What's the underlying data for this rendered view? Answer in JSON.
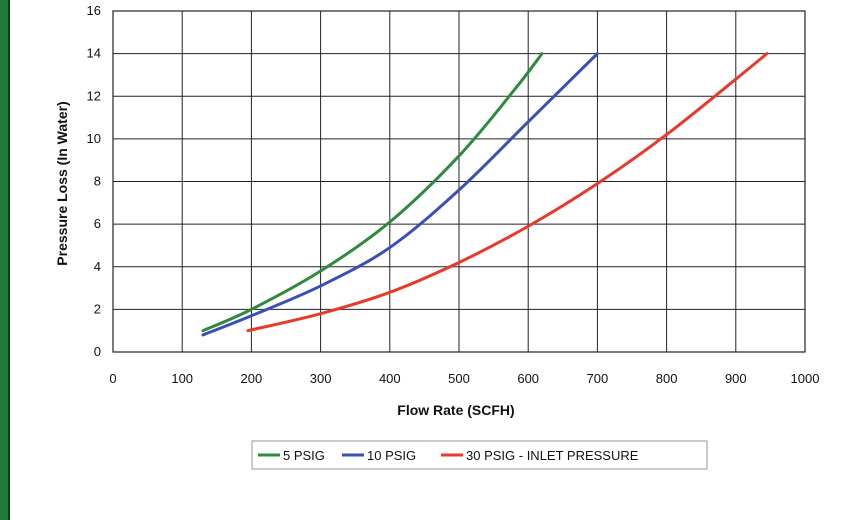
{
  "chart_data": {
    "type": "line",
    "title": "",
    "xlabel": "Flow Rate (SCFH)",
    "ylabel": "Pressure Loss (In Water)",
    "xlim": [
      0,
      1000
    ],
    "ylim": [
      0,
      16
    ],
    "x_ticks": [
      0,
      100,
      200,
      300,
      400,
      500,
      600,
      700,
      800,
      900,
      1000
    ],
    "x_tick_labels": [
      "0",
      "100",
      "200",
      "300",
      "400",
      "500",
      "600",
      "700",
      "800",
      "900",
      "1000"
    ],
    "y_ticks": [
      0,
      2,
      4,
      6,
      8,
      10,
      12,
      14,
      16
    ],
    "y_tick_labels": [
      "0",
      "2",
      "4",
      "6",
      "8",
      "10",
      "12",
      "14",
      "16"
    ],
    "grid": true,
    "legend_position": "bottom",
    "series": [
      {
        "name": "5 PSIG",
        "color": "#2e8b3e",
        "x": [
          130,
          200,
          300,
          400,
          500,
          580,
          620
        ],
        "y": [
          1.0,
          2.0,
          3.8,
          6.1,
          9.2,
          12.3,
          14.0
        ]
      },
      {
        "name": "10 PSIG",
        "color": "#3a4fb8",
        "x": [
          130,
          200,
          300,
          400,
          500,
          600,
          700
        ],
        "y": [
          0.8,
          1.7,
          3.1,
          4.9,
          7.6,
          10.8,
          14.0
        ]
      },
      {
        "name": "30 PSIG - INLET PRESSURE",
        "color": "#e8392a",
        "x": [
          195,
          300,
          400,
          500,
          600,
          700,
          800,
          900,
          945
        ],
        "y": [
          1.0,
          1.8,
          2.8,
          4.2,
          5.9,
          7.9,
          10.2,
          12.8,
          14.0
        ]
      }
    ]
  }
}
